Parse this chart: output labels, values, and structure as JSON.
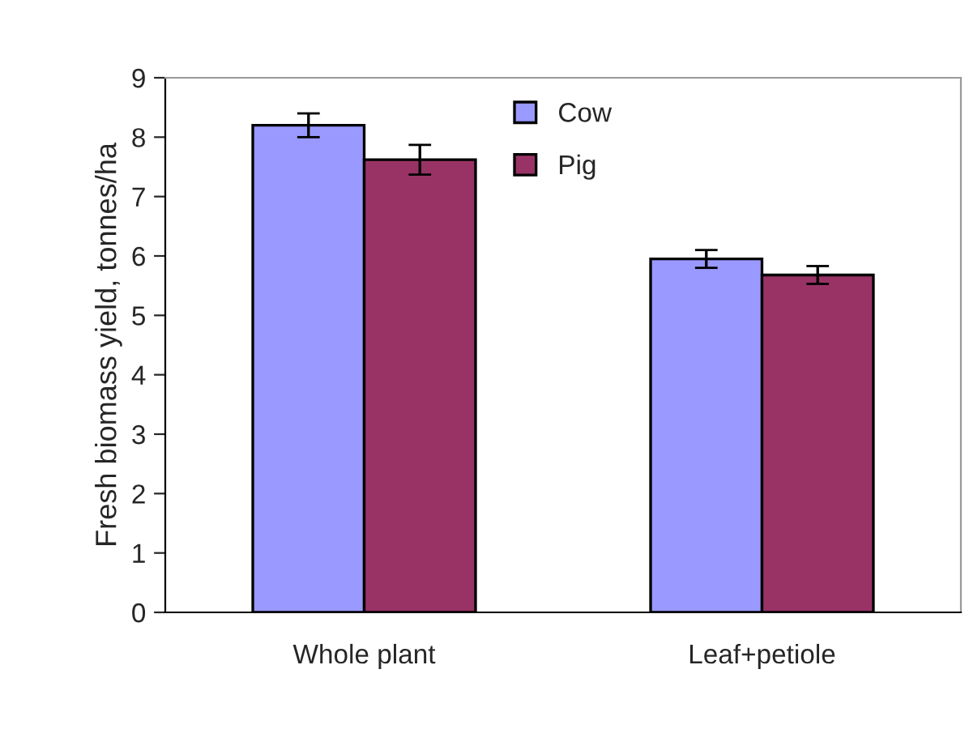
{
  "chart_data": {
    "type": "bar",
    "ylabel": "Fresh biomass yield, tonnes/ha",
    "categories": [
      "Whole plant",
      "Leaf+petiole"
    ],
    "series": [
      {
        "name": "Cow",
        "color": "#9999ff",
        "values": [
          8.2,
          5.95
        ],
        "errors": [
          0.2,
          0.15
        ]
      },
      {
        "name": "Pig",
        "color": "#993366",
        "values": [
          7.62,
          5.68
        ],
        "errors": [
          0.25,
          0.15
        ]
      }
    ],
    "ylim": [
      0,
      9
    ],
    "yticks": [
      0,
      1,
      2,
      3,
      4,
      5,
      6,
      7,
      8,
      9
    ],
    "grid": false,
    "legend": "top"
  }
}
